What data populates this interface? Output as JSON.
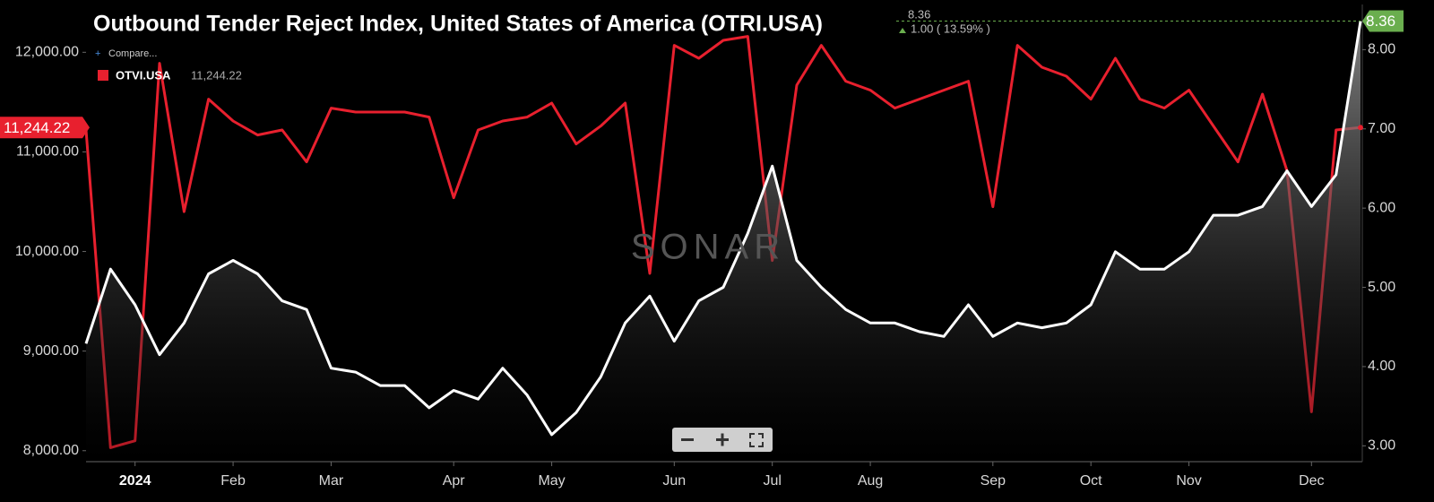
{
  "chart_data": {
    "type": "line",
    "title": "Outbound Tender Reject Index, United States of America (OTRI.USA)",
    "compare_label": "Compare...",
    "watermark": "SONAR",
    "change_label": "1.00 ( 13.59% )",
    "categories": [
      null,
      null,
      "2024",
      null,
      null,
      null,
      "Feb",
      null,
      null,
      null,
      "Mar",
      null,
      null,
      null,
      null,
      "Apr",
      null,
      null,
      null,
      "May",
      null,
      null,
      null,
      null,
      "Jun",
      null,
      null,
      null,
      "Jul",
      null,
      null,
      null,
      "Aug",
      null,
      null,
      null,
      null,
      "Sep",
      null,
      null,
      null,
      "Oct",
      null,
      null,
      null,
      "Nov",
      null,
      null,
      null,
      null,
      "Dec",
      null,
      null
    ],
    "series": [
      {
        "name": "OTVI.USA",
        "color": "#e8202e",
        "axis": "y",
        "values": [
          11220,
          8030,
          8100,
          11890,
          10400,
          11530,
          11310,
          11170,
          11220,
          10900,
          11440,
          11400,
          11400,
          11400,
          11350,
          10540,
          11220,
          11310,
          11350,
          11490,
          11080,
          11260,
          11490,
          9780,
          12070,
          11940,
          12120,
          12160,
          9910,
          11670,
          12070,
          11710,
          11620,
          11440,
          11530,
          11620,
          11710,
          10450,
          12070,
          11850,
          11760,
          11530,
          11940,
          11530,
          11440,
          11620,
          11260,
          10900,
          11580,
          10810,
          8390,
          11220,
          11244.22
        ],
        "value_labels": [
          null,
          null,
          null,
          null,
          null,
          null,
          null,
          null,
          null,
          null,
          null,
          null,
          null,
          null,
          null,
          null,
          null,
          null,
          null,
          null,
          null,
          null,
          null,
          null,
          null,
          null,
          null,
          null,
          null,
          null,
          null,
          null,
          null,
          null,
          null,
          null,
          null,
          null,
          null,
          null,
          null,
          null,
          null,
          null,
          null,
          null,
          null,
          null,
          null,
          null,
          null,
          null,
          "11,244.22"
        ]
      },
      {
        "color": "#ffffff",
        "axis": "y2",
        "last_color": "#6aae4e",
        "values": [
          4.29,
          5.23,
          4.78,
          4.15,
          4.55,
          5.17,
          5.34,
          5.17,
          4.83,
          4.72,
          3.98,
          3.93,
          3.76,
          3.76,
          3.48,
          3.7,
          3.59,
          3.98,
          3.64,
          3.14,
          3.42,
          3.87,
          4.55,
          4.89,
          4.32,
          4.83,
          5.0,
          5.68,
          6.53,
          5.34,
          5.0,
          4.72,
          4.55,
          4.55,
          4.44,
          4.38,
          4.78,
          4.38,
          4.55,
          4.49,
          4.55,
          4.78,
          5.45,
          5.23,
          5.23,
          5.45,
          5.91,
          5.91,
          6.02,
          6.47,
          6.02,
          6.42,
          8.36
        ]
      }
    ],
    "ylim": [
      7890,
      12480
    ],
    "yticks": [
      {
        "value": 8000,
        "label": "8,000.00"
      },
      {
        "value": 9000,
        "label": "9,000.00"
      },
      {
        "value": 10000,
        "label": "10,000.00"
      },
      {
        "value": 11000,
        "label": "11,000.00"
      },
      {
        "value": 12000,
        "label": "12,000.00"
      }
    ],
    "y2lim": [
      2.8,
      8.57
    ],
    "y2ticks": [
      {
        "value": 3,
        "label": "3.00"
      },
      {
        "value": 4,
        "label": "4.00"
      },
      {
        "value": 5,
        "label": "5.00"
      },
      {
        "value": 6,
        "label": "6.00"
      },
      {
        "value": 7,
        "label": "7.00"
      },
      {
        "value": 8,
        "label": "8.00"
      }
    ]
  }
}
